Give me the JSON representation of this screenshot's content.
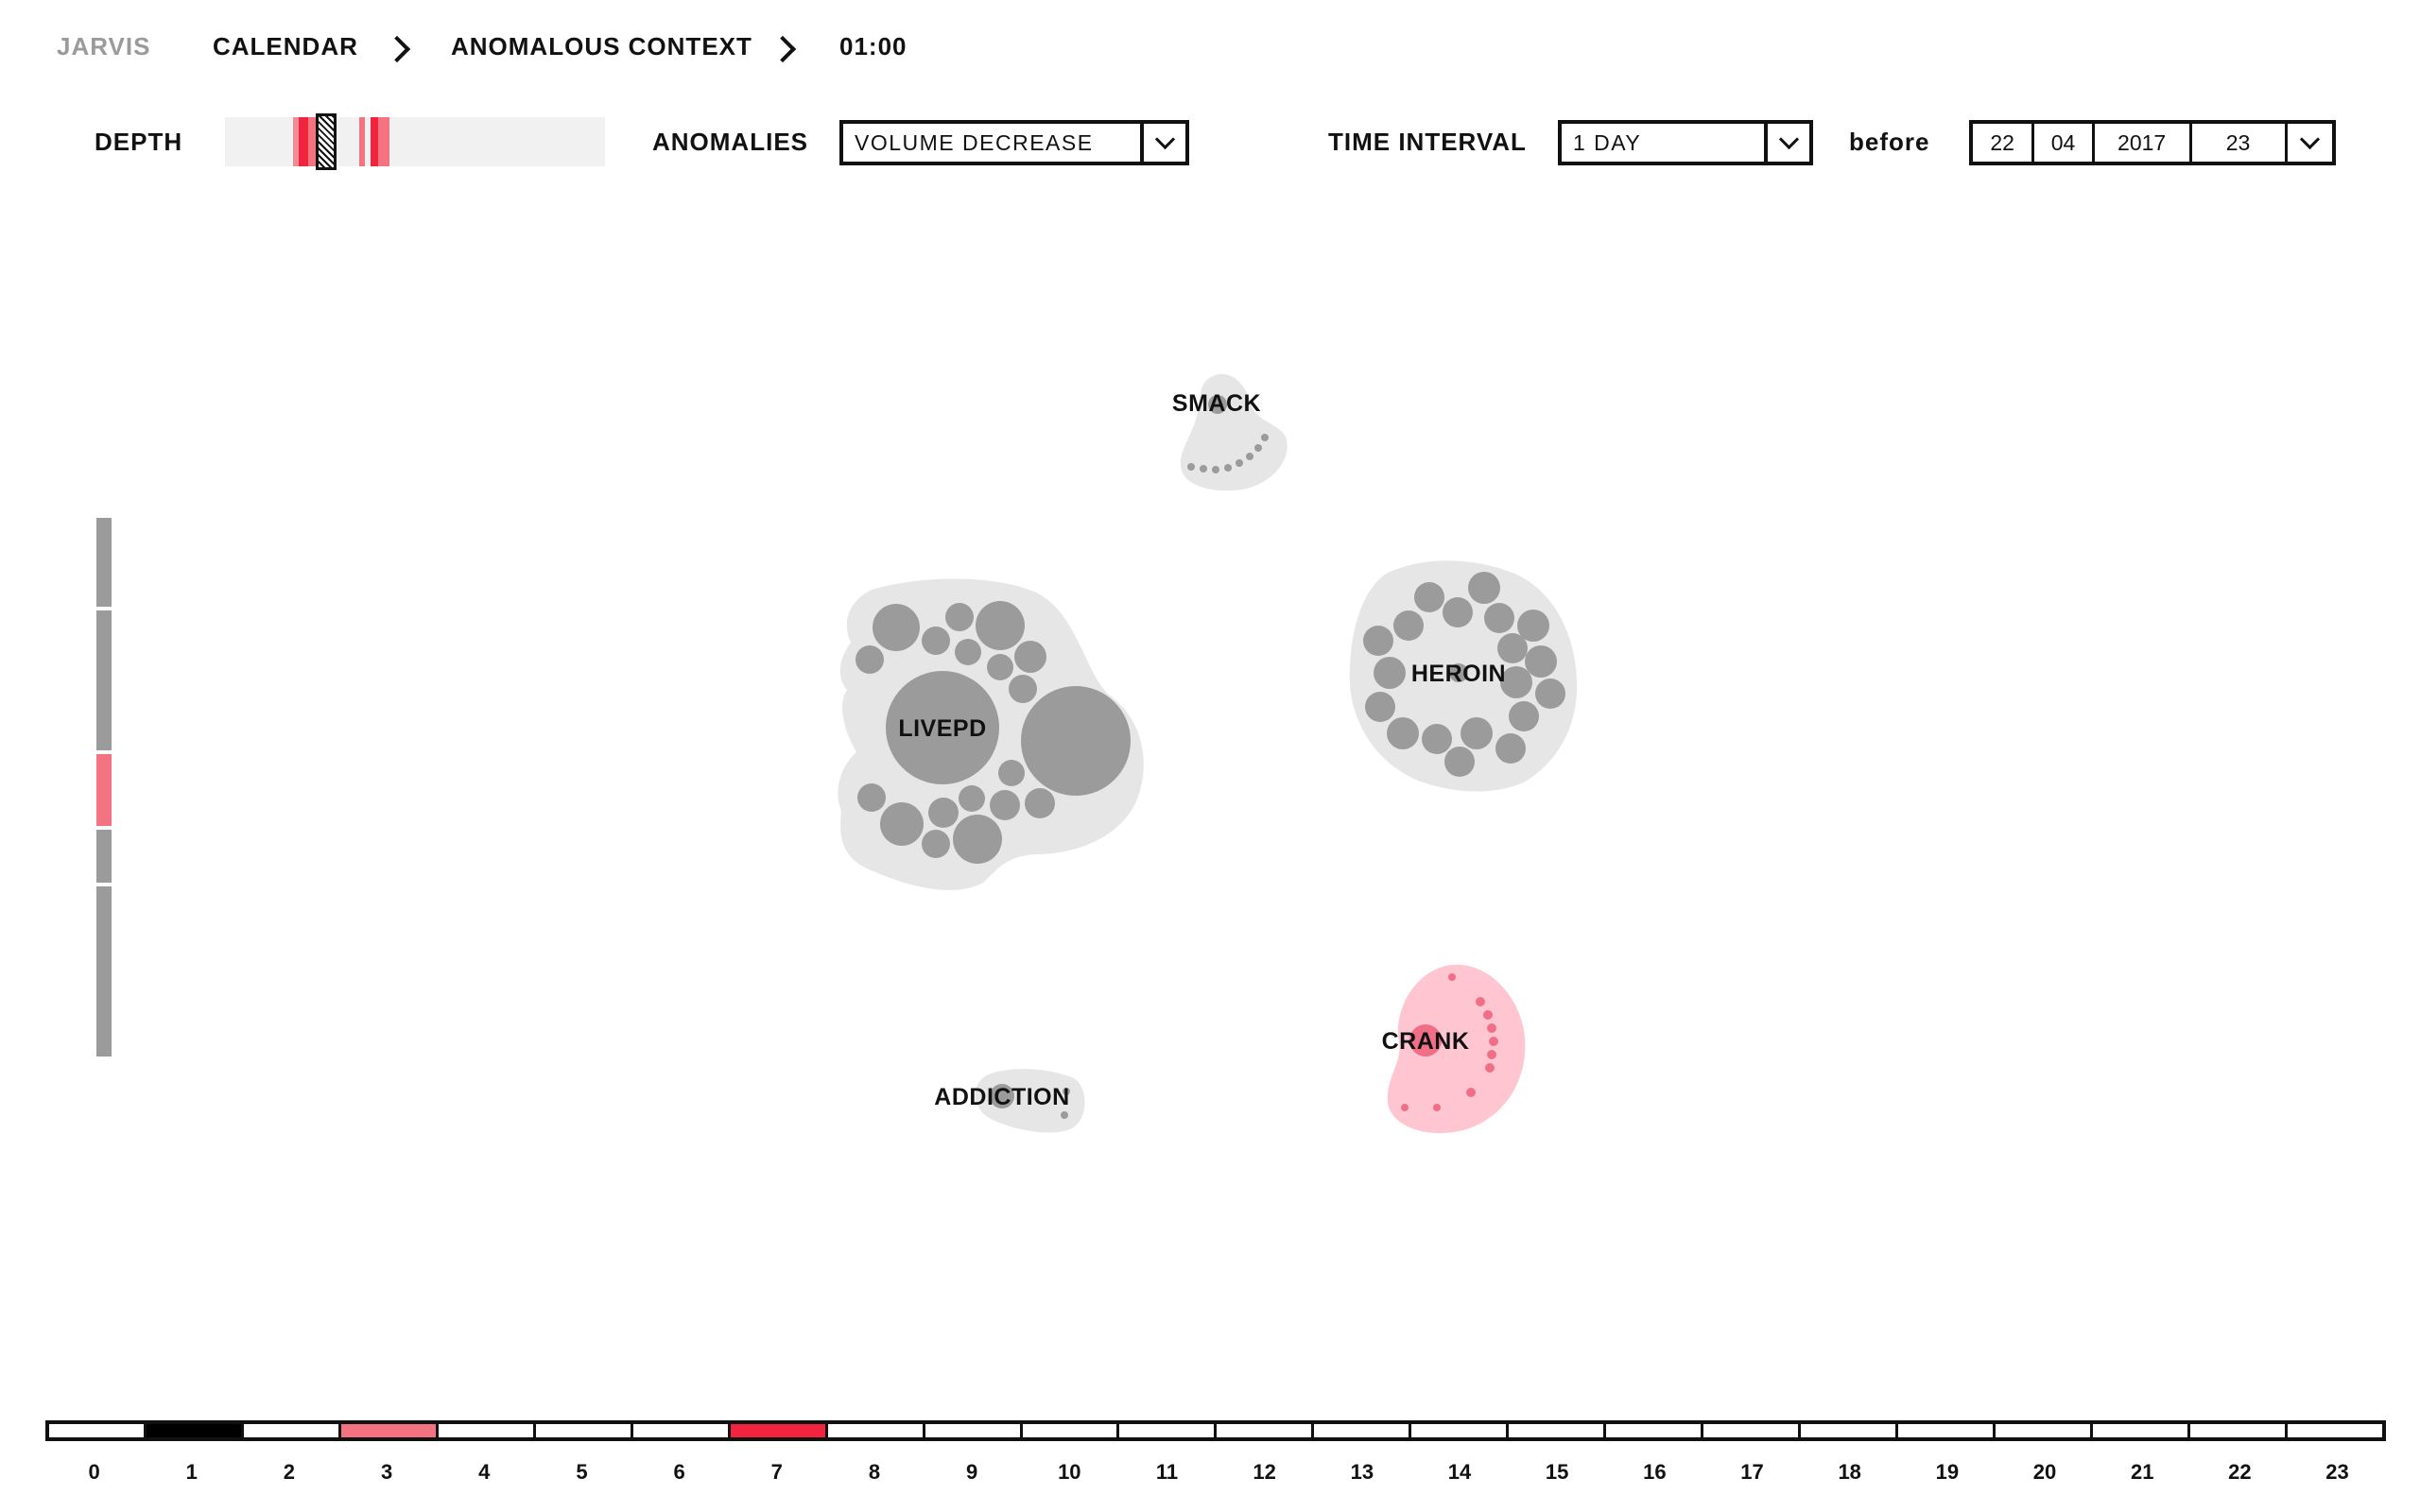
{
  "breadcrumb": {
    "brand": "JARVIS",
    "items": [
      "CALENDAR",
      "ANOMALOUS CONTEXT",
      "01:00"
    ]
  },
  "controls": {
    "depth_label": "DEPTH",
    "anomalies_label": "ANOMALIES",
    "anomalies_value": "VOLUME DECREASE",
    "interval_label": "TIME INTERVAL",
    "interval_value": "1 DAY",
    "before_label": "before",
    "date": {
      "day": "22",
      "month": "04",
      "year": "2017",
      "hour": "23"
    }
  },
  "colors": {
    "accent": "#f0243f",
    "anomaly_light": "#f47381",
    "cluster_gray": "#e6e6e6",
    "node_gray": "#9b9b9b",
    "anomaly_cluster": "#ffc6d2",
    "anomaly_node": "#f06f86"
  },
  "clusters": [
    {
      "name": "SMACK",
      "anomalous": false
    },
    {
      "name": "LIVEPD",
      "anomalous": false
    },
    {
      "name": "HEROIN",
      "anomalous": false
    },
    {
      "name": "CRANK",
      "anomalous": true
    },
    {
      "name": "ADDICTION",
      "anomalous": false
    }
  ],
  "timeline": {
    "hours": [
      "0",
      "1",
      "2",
      "3",
      "4",
      "5",
      "6",
      "7",
      "8",
      "9",
      "10",
      "11",
      "12",
      "13",
      "14",
      "15",
      "16",
      "17",
      "18",
      "19",
      "20",
      "21",
      "22",
      "23"
    ],
    "selected_hour": "1",
    "anomaly_hours": [
      {
        "hour": "3",
        "level": "medium"
      },
      {
        "hour": "7",
        "level": "high"
      }
    ]
  }
}
